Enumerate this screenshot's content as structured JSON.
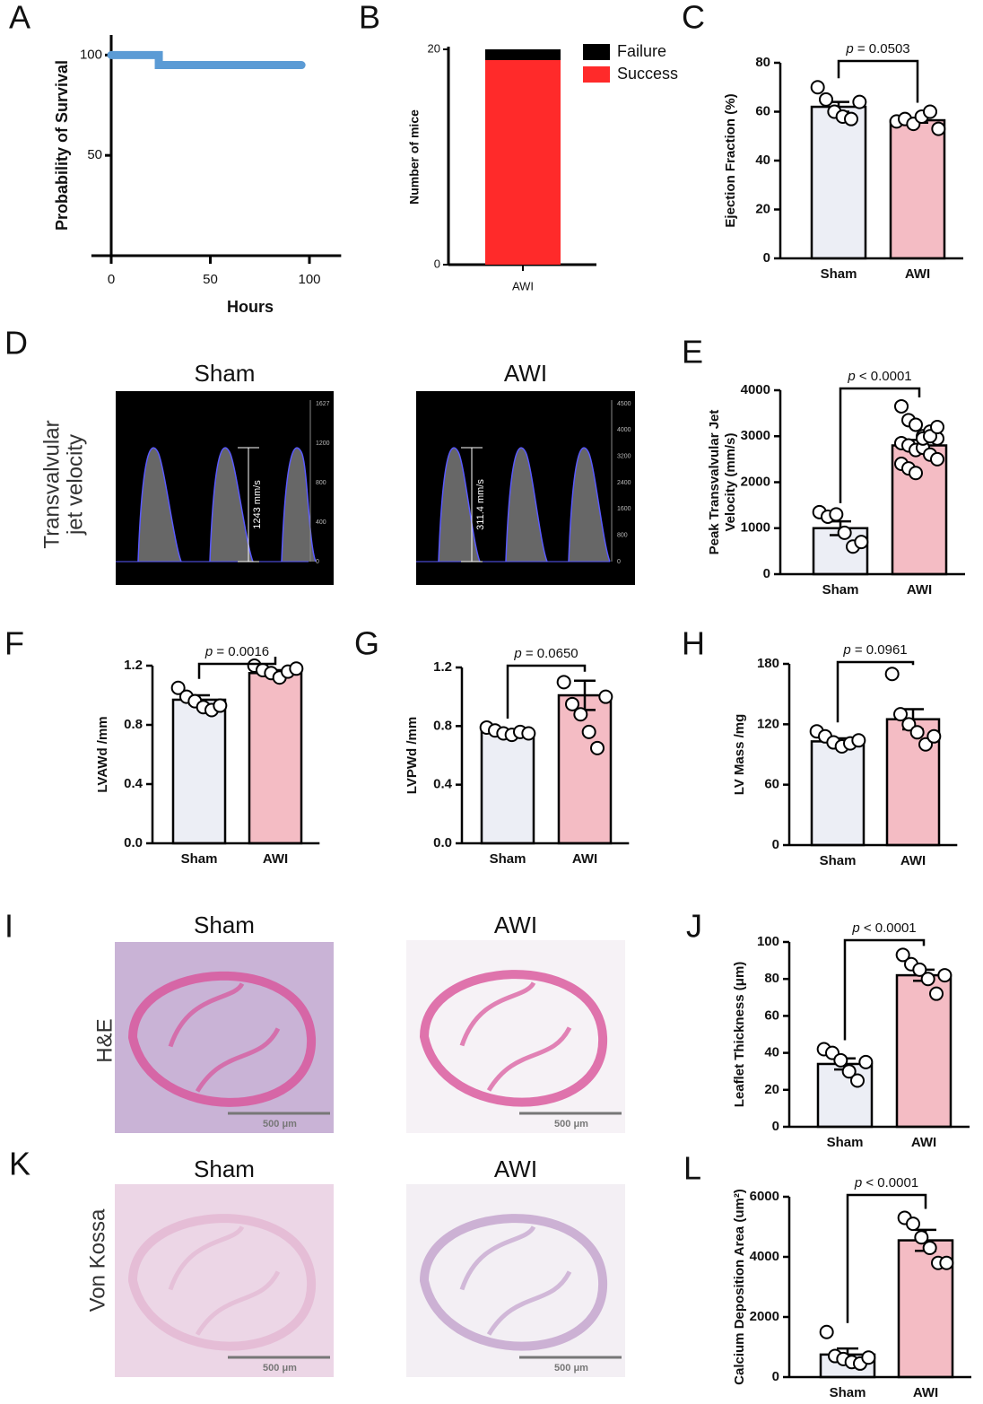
{
  "chart_data": [
    {
      "panel": "A",
      "type": "step",
      "xlabel": "Hours",
      "ylabel": "Probability of Survival",
      "xlim": [
        -10,
        116
      ],
      "xticks": [
        0,
        50,
        100
      ],
      "ylim": [
        0,
        110
      ],
      "yticks": [
        50,
        100
      ],
      "series": [
        {
          "color": "#5b9bd5",
          "x": [
            0,
            24,
            24,
            96
          ],
          "values": [
            100,
            100,
            95,
            95
          ]
        }
      ]
    },
    {
      "panel": "B",
      "type": "stacked_bar",
      "ylabel": "Number of mice",
      "categories": [
        "AWI"
      ],
      "ylim": [
        0,
        20
      ],
      "yticks": [
        0,
        20
      ],
      "legend": "top-right",
      "series": [
        {
          "name": "Success",
          "color": "#ff2a2a",
          "values": [
            19
          ]
        },
        {
          "name": "Failure",
          "color": "#000000",
          "values": [
            1
          ]
        }
      ]
    },
    {
      "panel": "C",
      "type": "bar_dot",
      "ylabel": "Ejection Fraction (%)",
      "annotation": "p = 0.0503",
      "ylim": [
        0,
        80
      ],
      "yticks": [
        0,
        20,
        40,
        60,
        80
      ],
      "series": [
        {
          "name": "Sham",
          "color": "#eceef5",
          "mean": 62,
          "sem": 2,
          "points": [
            70,
            65,
            60,
            58,
            57,
            64
          ]
        },
        {
          "name": "AWI",
          "color": "#f4bcc4",
          "mean": 56.5,
          "sem": 1,
          "points": [
            56,
            57,
            55,
            58,
            60,
            53
          ]
        }
      ]
    },
    {
      "panel": "E",
      "type": "bar_dot",
      "ylabel": [
        "Peak Transvalvular Jet",
        "Velocity  (mm/s)"
      ],
      "annotation": "p < 0.0001",
      "ylim": [
        0,
        4000
      ],
      "yticks": [
        0,
        1000,
        2000,
        3000,
        4000
      ],
      "series": [
        {
          "name": "Sham",
          "color": "#eceef5",
          "mean": 1000,
          "sem": 150,
          "points": [
            1350,
            1250,
            1300,
            900,
            600,
            700
          ]
        },
        {
          "name": "AWI",
          "color": "#f4bcc4",
          "mean": 2800,
          "sem": 120,
          "points": [
            3650,
            3350,
            3250,
            3000,
            3100,
            2950,
            2850,
            2800,
            2700,
            2750,
            2600,
            2500,
            2400,
            2300,
            2200,
            2950,
            3000,
            3200
          ]
        }
      ]
    },
    {
      "panel": "F",
      "type": "bar_dot",
      "ylabel": "LVAWd /mm",
      "annotation": "p = 0.0016",
      "ylim": [
        0,
        1.2
      ],
      "yticks": [
        {
          "value": 0,
          "label": "0.0"
        },
        0.4,
        0.8,
        1.2
      ],
      "series": [
        {
          "name": "Sham",
          "color": "#eceef5",
          "mean": 0.97,
          "sem": 0.03,
          "points": [
            1.05,
            0.99,
            0.96,
            0.92,
            0.9,
            0.93
          ]
        },
        {
          "name": "AWI",
          "color": "#f4bcc4",
          "mean": 1.15,
          "sem": 0.02,
          "points": [
            1.2,
            1.17,
            1.15,
            1.12,
            1.16,
            1.18
          ]
        }
      ]
    },
    {
      "panel": "G",
      "type": "bar_dot",
      "ylabel": "LVPWd /mm",
      "annotation": "p = 0.0650",
      "ylim": [
        0,
        1.2
      ],
      "yticks": [
        {
          "value": 0,
          "label": "0.0"
        },
        0.4,
        0.8,
        1.2
      ],
      "series": [
        {
          "name": "Sham",
          "color": "#eceef5",
          "mean": 0.76,
          "sem": 0.01,
          "points": [
            0.79,
            0.77,
            0.75,
            0.74,
            0.76,
            0.75
          ]
        },
        {
          "name": "AWI",
          "color": "#f4bcc4",
          "mean": 1.01,
          "sem": 0.1,
          "points": [
            1.1,
            0.95,
            0.88,
            0.76,
            0.65,
            1.0
          ]
        }
      ]
    },
    {
      "panel": "H",
      "type": "bar_dot",
      "ylabel": "LV Mass /mg",
      "annotation": "p = 0.0961",
      "ylim": [
        0,
        180
      ],
      "yticks": [
        0,
        60,
        120,
        180
      ],
      "series": [
        {
          "name": "Sham",
          "color": "#eceef5",
          "mean": 103,
          "sem": 3,
          "points": [
            113,
            108,
            102,
            98,
            101,
            104
          ]
        },
        {
          "name": "AWI",
          "color": "#f4bcc4",
          "mean": 125,
          "sem": 10,
          "points": [
            170,
            130,
            120,
            112,
            100,
            108
          ]
        }
      ]
    },
    {
      "panel": "J",
      "type": "bar_dot",
      "ylabel": "Leaflet Thickness (μm)",
      "annotation": "p < 0.0001",
      "ylim": [
        0,
        100
      ],
      "yticks": [
        0,
        20,
        40,
        60,
        80,
        100
      ],
      "series": [
        {
          "name": "Sham",
          "color": "#eceef5",
          "mean": 34,
          "sem": 3,
          "points": [
            42,
            40,
            36,
            30,
            25,
            35
          ]
        },
        {
          "name": "AWI",
          "color": "#f4bcc4",
          "mean": 82,
          "sem": 3,
          "points": [
            93,
            88,
            85,
            80,
            72,
            82
          ]
        }
      ]
    },
    {
      "panel": "L",
      "type": "bar_dot",
      "ylabel": "Calcium Deposition Area (um²)",
      "annotation": "p < 0.0001",
      "ylim": [
        0,
        6000
      ],
      "yticks": [
        0,
        2000,
        4000,
        6000
      ],
      "series": [
        {
          "name": "Sham",
          "color": "#eceef5",
          "mean": 750,
          "sem": 200,
          "points": [
            1500,
            700,
            600,
            500,
            450,
            650
          ]
        },
        {
          "name": "AWI",
          "color": "#f4bcc4",
          "mean": 4550,
          "sem": 350,
          "points": [
            5300,
            5100,
            4650,
            4300,
            3800,
            3800
          ]
        }
      ]
    }
  ],
  "images": [
    {
      "panel": "D",
      "kind": "echo",
      "label": [
        "Transvalvular",
        "jet velocity"
      ],
      "items": [
        {
          "title": "Sham",
          "measurement": "1243 mm/s",
          "scale": [
            "1627",
            "1200",
            "800",
            "400",
            "0"
          ]
        },
        {
          "title": "AWI",
          "measurement": "311.4 mm/s",
          "scale": [
            "4500",
            "4000",
            "3200",
            "2400",
            "1600",
            "800",
            "0"
          ]
        }
      ]
    },
    {
      "panel": "I",
      "kind": "he",
      "label": [
        "H&E"
      ],
      "items": [
        {
          "title": "Sham",
          "scale_bar": "500 μm"
        },
        {
          "title": "AWI",
          "scale_bar": "500 μm"
        }
      ]
    },
    {
      "panel": "K",
      "kind": "vk",
      "label": [
        "Von Kossa"
      ],
      "items": [
        {
          "title": "Sham",
          "scale_bar": "500 μm"
        },
        {
          "title": "AWI",
          "scale_bar": "500 μm"
        }
      ]
    }
  ]
}
